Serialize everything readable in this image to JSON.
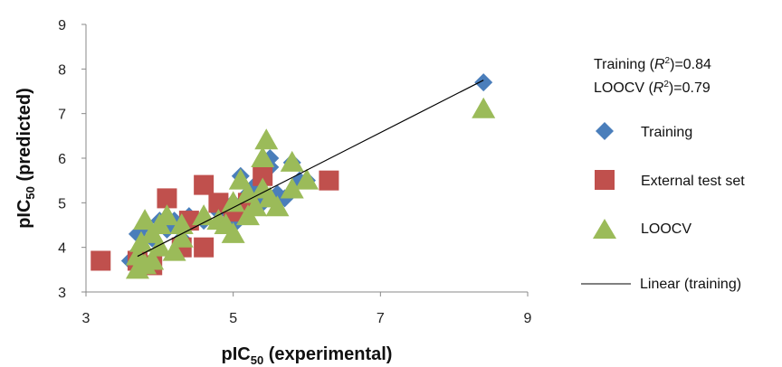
{
  "chart_data": {
    "type": "scatter",
    "xlabel": {
      "prefix": "pIC",
      "sub": "50",
      "suffix": " (experimental)"
    },
    "ylabel": {
      "prefix": "pIC",
      "sub": "50",
      "suffix": " (predicted)"
    },
    "xlim": [
      3,
      9
    ],
    "ylim": [
      3,
      9
    ],
    "xticks": [
      3,
      5,
      7,
      9
    ],
    "yticks": [
      3,
      4,
      5,
      6,
      7,
      8,
      9
    ],
    "grid": false,
    "legend_position": "right",
    "stats": [
      {
        "pre": "Training (",
        "r": "R",
        "sup": "2",
        "post": ")=0.84"
      },
      {
        "pre": "LOOCV (",
        "r": "R",
        "sup": "2",
        "post": ")=0.79"
      }
    ],
    "series": [
      {
        "name": "Training",
        "marker": "diamond",
        "color": "#4a7ebb",
        "points": [
          [
            3.7,
            4.3
          ],
          [
            3.8,
            4.5
          ],
          [
            3.9,
            4.2
          ],
          [
            4.0,
            4.6
          ],
          [
            4.1,
            4.4
          ],
          [
            4.2,
            4.6
          ],
          [
            3.6,
            3.7
          ],
          [
            3.7,
            3.9
          ],
          [
            4.3,
            4.2
          ],
          [
            4.4,
            4.7
          ],
          [
            4.6,
            4.6
          ],
          [
            4.8,
            4.8
          ],
          [
            5.0,
            4.5
          ],
          [
            5.0,
            5.0
          ],
          [
            5.1,
            5.6
          ],
          [
            5.2,
            5.2
          ],
          [
            5.3,
            5.4
          ],
          [
            5.4,
            5.0
          ],
          [
            5.5,
            5.8
          ],
          [
            5.5,
            6.0
          ],
          [
            5.6,
            5.2
          ],
          [
            5.7,
            5.1
          ],
          [
            5.8,
            5.9
          ],
          [
            5.9,
            5.5
          ],
          [
            6.0,
            5.5
          ],
          [
            8.4,
            7.7
          ]
        ]
      },
      {
        "name": "External test set",
        "marker": "square",
        "color": "#c0504d",
        "points": [
          [
            3.2,
            3.7
          ],
          [
            3.7,
            3.7
          ],
          [
            3.9,
            3.6
          ],
          [
            4.1,
            5.1
          ],
          [
            4.3,
            4.0
          ],
          [
            4.4,
            4.6
          ],
          [
            4.6,
            4.0
          ],
          [
            4.6,
            5.4
          ],
          [
            4.8,
            5.0
          ],
          [
            5.0,
            4.8
          ],
          [
            5.2,
            5.0
          ],
          [
            5.4,
            5.6
          ],
          [
            6.3,
            5.5
          ]
        ]
      },
      {
        "name": "LOOCV",
        "marker": "triangle",
        "color": "#9bbb59",
        "points": [
          [
            3.7,
            3.5
          ],
          [
            3.7,
            3.8
          ],
          [
            3.75,
            4.1
          ],
          [
            3.8,
            3.6
          ],
          [
            3.8,
            4.6
          ],
          [
            3.9,
            3.7
          ],
          [
            3.9,
            4.3
          ],
          [
            4.0,
            4.5
          ],
          [
            4.0,
            4.0
          ],
          [
            4.1,
            4.7
          ],
          [
            4.2,
            3.9
          ],
          [
            4.3,
            4.2
          ],
          [
            4.3,
            4.5
          ],
          [
            4.6,
            4.7
          ],
          [
            4.8,
            4.6
          ],
          [
            4.9,
            4.5
          ],
          [
            5.0,
            4.3
          ],
          [
            5.0,
            5.0
          ],
          [
            5.1,
            5.5
          ],
          [
            5.2,
            5.2
          ],
          [
            5.2,
            4.7
          ],
          [
            5.3,
            4.9
          ],
          [
            5.4,
            5.3
          ],
          [
            5.4,
            6.0
          ],
          [
            5.45,
            6.4
          ],
          [
            5.5,
            5.1
          ],
          [
            5.6,
            4.9
          ],
          [
            5.8,
            5.3
          ],
          [
            5.8,
            5.9
          ],
          [
            6.0,
            5.5
          ],
          [
            8.4,
            7.1
          ]
        ]
      }
    ],
    "trendline": {
      "name": "Linear (training)",
      "color": "#000000",
      "from": [
        3.7,
        3.8
      ],
      "to": [
        8.4,
        7.75
      ]
    }
  }
}
